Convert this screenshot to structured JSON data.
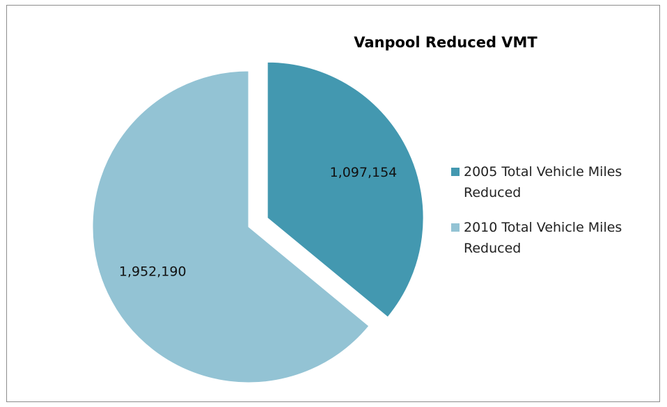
{
  "chart_data": {
    "type": "pie",
    "title": "Vanpool Reduced VMT",
    "categories": [
      "2005 Total Vehicle Miles Reduced",
      "2010 Total Vehicle Miles Reduced"
    ],
    "values": [
      1097154,
      1952190
    ],
    "value_labels": [
      "1,097,154",
      "1,952,190"
    ],
    "colors": [
      "#4398b0",
      "#93c3d4"
    ],
    "exploded": [
      true,
      false
    ],
    "legend": "right"
  }
}
